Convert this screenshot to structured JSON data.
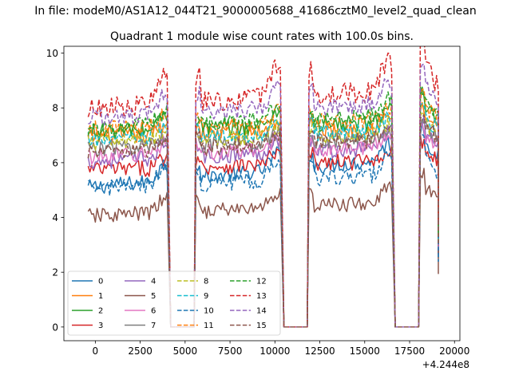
{
  "chart_data": {
    "type": "line",
    "suptitle": "In file: modeM0/AS1A12_044T21_9000005688_41686cztM0_level2_quad_clean",
    "title": "Quadrant 1 module wise count rates with 100.0s bins.",
    "xlabel": "",
    "ylabel": "",
    "x_offset_label": "+4.244e8",
    "xlim": [
      -1750,
      20300
    ],
    "ylim": [
      -0.5,
      10.25
    ],
    "xticks": [
      0,
      2500,
      5000,
      7500,
      10000,
      12500,
      15000,
      17500,
      20000
    ],
    "xtick_labels": [
      "0",
      "2500",
      "5000",
      "7500",
      "10000",
      "12500",
      "15000",
      "17500",
      "20000"
    ],
    "yticks": [
      0,
      2,
      4,
      6,
      8,
      10
    ],
    "ytick_labels": [
      "0",
      "2",
      "4",
      "6",
      "8",
      "10"
    ],
    "grid": false,
    "legend_position": "lower-left",
    "legend_columns": 4,
    "segments": [
      [
        -400,
        4000
      ],
      [
        5600,
        10300
      ],
      [
        11900,
        16500
      ],
      [
        18100,
        19100
      ]
    ],
    "gaps": [
      [
        4400,
        5500
      ],
      [
        10600,
        11800
      ],
      [
        16700,
        18000
      ]
    ],
    "series": [
      {
        "name": "0",
        "color": "#1f77b4",
        "dashed": false,
        "mean": 5.6,
        "slope": 6e-05,
        "wobble": 0.28,
        "peak": 6.4
      },
      {
        "name": "1",
        "color": "#ff7f0e",
        "dashed": false,
        "mean": 7.1,
        "slope": 2e-05,
        "wobble": 0.3,
        "peak": 7.6
      },
      {
        "name": "2",
        "color": "#2ca02c",
        "dashed": false,
        "mean": 7.3,
        "slope": 2e-05,
        "wobble": 0.32,
        "peak": 8.0
      },
      {
        "name": "3",
        "color": "#d62728",
        "dashed": false,
        "mean": 5.9,
        "slope": 2e-05,
        "wobble": 0.3,
        "peak": 6.4
      },
      {
        "name": "4",
        "color": "#9467bd",
        "dashed": false,
        "mean": 6.3,
        "slope": 3e-05,
        "wobble": 0.3,
        "peak": 7.0
      },
      {
        "name": "5",
        "color": "#8c564b",
        "dashed": false,
        "mean": 4.3,
        "slope": 3e-05,
        "wobble": 0.28,
        "peak": 5.0
      },
      {
        "name": "6",
        "color": "#e377c2",
        "dashed": false,
        "mean": 6.4,
        "slope": 2e-05,
        "wobble": 0.3,
        "peak": 7.0
      },
      {
        "name": "7",
        "color": "#7f7f7f",
        "dashed": false,
        "mean": 6.7,
        "slope": 2e-05,
        "wobble": 0.3,
        "peak": 7.2
      },
      {
        "name": "8",
        "color": "#bcbd22",
        "dashed": true,
        "mean": 6.9,
        "slope": 2e-05,
        "wobble": 0.3,
        "peak": 7.4
      },
      {
        "name": "9",
        "color": "#17becf",
        "dashed": true,
        "mean": 7.0,
        "slope": 2e-05,
        "wobble": 0.3,
        "peak": 7.6
      },
      {
        "name": "10",
        "color": "#1f77b4",
        "dashed": true,
        "mean": 5.3,
        "slope": 3e-05,
        "wobble": 0.3,
        "peak": 6.2
      },
      {
        "name": "11",
        "color": "#ff7f0e",
        "dashed": true,
        "mean": 7.4,
        "slope": 2e-05,
        "wobble": 0.3,
        "peak": 8.0
      },
      {
        "name": "12",
        "color": "#2ca02c",
        "dashed": true,
        "mean": 7.5,
        "slope": 3e-05,
        "wobble": 0.3,
        "peak": 8.2
      },
      {
        "name": "13",
        "color": "#d62728",
        "dashed": true,
        "mean": 8.3,
        "slope": 4e-05,
        "wobble": 0.38,
        "peak": 9.8
      },
      {
        "name": "14",
        "color": "#9467bd",
        "dashed": true,
        "mean": 7.9,
        "slope": 3e-05,
        "wobble": 0.32,
        "peak": 9.0
      },
      {
        "name": "15",
        "color": "#8c564b",
        "dashed": true,
        "mean": 6.6,
        "slope": 3e-05,
        "wobble": 0.3,
        "peak": 7.2
      }
    ]
  }
}
